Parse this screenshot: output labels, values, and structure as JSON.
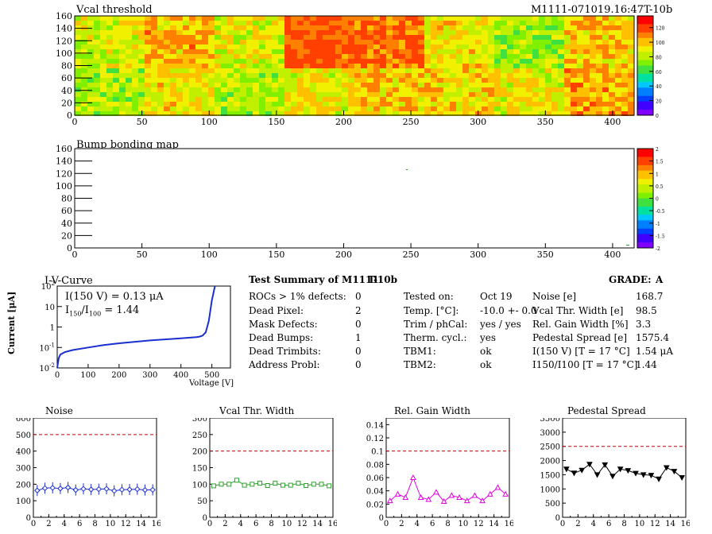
{
  "header": {
    "vcal_title": "Vcal threshold",
    "module_id": "M1111-071019.16:47T-10b",
    "bump_title": "Bump bonding map"
  },
  "maps": {
    "x_ticks": [
      "0",
      "50",
      "100",
      "150",
      "200",
      "250",
      "300",
      "350",
      "400"
    ],
    "y_ticks": [
      "0",
      "20",
      "40",
      "60",
      "80",
      "100",
      "120",
      "140",
      "160"
    ],
    "vcal_colorbar_ticks": [
      "0",
      "20",
      "40",
      "60",
      "80",
      "100",
      "120"
    ],
    "bump_colorbar_ticks": [
      "-2",
      "-1.5",
      "-1",
      "-0.5",
      "0",
      "0.5",
      "1",
      "1.5",
      "2"
    ]
  },
  "iv": {
    "title": "I-V-Curve",
    "i150_label": "I(150 V) = 0.13 μA",
    "ratio_label_main": "I",
    "ratio_sub1": "150",
    "ratio_slash": "/I",
    "ratio_sub2": "100",
    "ratio_value": "=  1.44",
    "ylabel": "Current [μA]",
    "xlabel": "Voltage [V]",
    "x_ticks": [
      "0",
      "100",
      "200",
      "300",
      "400",
      "500"
    ]
  },
  "summary": {
    "title": "Test Summary of M1111",
    "test": "T-10b",
    "grade_label": "GRADE:",
    "grade": "A",
    "left": [
      {
        "label": "ROCs > 1% defects:",
        "value": "0"
      },
      {
        "label": "Dead Pixel:",
        "value": "2"
      },
      {
        "label": "Mask Defects:",
        "value": "0"
      },
      {
        "label": "Dead Bumps:",
        "value": "1"
      },
      {
        "label": "Dead Trimbits:",
        "value": "0"
      },
      {
        "label": "Address Probl:",
        "value": "0"
      }
    ],
    "middle": [
      {
        "label": "Tested on:",
        "value": "Oct 19"
      },
      {
        "label": "Temp. [°C]:",
        "value": "-10.0 +- 0.0"
      },
      {
        "label": "Trim / phCal:",
        "value": "yes / yes"
      },
      {
        "label": "Therm. cycl.:",
        "value": "yes"
      },
      {
        "label": "TBM1:",
        "value": "ok"
      },
      {
        "label": "TBM2:",
        "value": "ok"
      }
    ],
    "right": [
      {
        "label": "Noise [e]",
        "value": "168.7"
      },
      {
        "label": "Vcal Thr. Width [e]",
        "value": "98.5"
      },
      {
        "label": "Rel. Gain Width [%]",
        "value": "3.3"
      },
      {
        "label": "Pedestal Spread [e]",
        "value": "1575.4"
      },
      {
        "label": "I(150 V) [T = 17 °C]",
        "value": "1.54 μA"
      },
      {
        "label": "I150/I100 [T = 17 °C]",
        "value": "1.44"
      }
    ]
  },
  "chart_data": [
    {
      "type": "line",
      "title": "I-V-Curve",
      "xlabel": "Voltage [V]",
      "ylabel": "Current [μA]",
      "log_y": true,
      "xlim": [
        0,
        560
      ],
      "ylim": [
        0.01,
        100
      ],
      "x": [
        0,
        5,
        10,
        25,
        50,
        100,
        150,
        200,
        300,
        400,
        450,
        460,
        470,
        480,
        490,
        500,
        510
      ],
      "y": [
        0.01,
        0.03,
        0.045,
        0.06,
        0.075,
        0.1,
        0.13,
        0.16,
        0.22,
        0.28,
        0.32,
        0.34,
        0.38,
        0.55,
        2,
        20,
        100
      ]
    },
    {
      "type": "line",
      "title": "Noise",
      "x": [
        0,
        1,
        2,
        3,
        4,
        5,
        6,
        7,
        8,
        9,
        10,
        11,
        12,
        13,
        14,
        15
      ],
      "ylim": [
        0,
        600
      ],
      "y_ticks": [
        "0",
        "100",
        "200",
        "300",
        "400",
        "500",
        "600"
      ],
      "x_ticks": [
        "0",
        "2",
        "4",
        "6",
        "8",
        "10",
        "12",
        "14",
        "16"
      ],
      "limit": 500,
      "color": "#1a2fd0",
      "marker": "diamond",
      "values": [
        162,
        176,
        178,
        174,
        180,
        165,
        172,
        168,
        170,
        172,
        160,
        167,
        168,
        170,
        165,
        166
      ]
    },
    {
      "type": "line",
      "title": "Vcal Thr. Width",
      "x": [
        0,
        1,
        2,
        3,
        4,
        5,
        6,
        7,
        8,
        9,
        10,
        11,
        12,
        13,
        14,
        15
      ],
      "ylim": [
        0,
        300
      ],
      "y_ticks": [
        "0",
        "50",
        "100",
        "150",
        "200",
        "250",
        "300"
      ],
      "x_ticks": [
        "0",
        "2",
        "4",
        "6",
        "8",
        "10",
        "12",
        "14",
        "16"
      ],
      "limit": 200,
      "color": "#2ca02c",
      "marker": "square",
      "values": [
        95,
        100,
        100,
        112,
        97,
        100,
        103,
        96,
        103,
        97,
        97,
        103,
        96,
        100,
        100,
        95
      ]
    },
    {
      "type": "line",
      "title": "Rel. Gain Width",
      "x": [
        0,
        1,
        2,
        3,
        4,
        5,
        6,
        7,
        8,
        9,
        10,
        11,
        12,
        13,
        14,
        15
      ],
      "ylim": [
        0,
        0.15
      ],
      "y_ticks": [
        "0",
        "0.02",
        "0.04",
        "0.06",
        "0.08",
        "0.1",
        "0.12",
        "0.14"
      ],
      "x_ticks": [
        "0",
        "2",
        "4",
        "6",
        "8",
        "10",
        "12",
        "14",
        "16"
      ],
      "limit": 0.1,
      "color": "#e000e0",
      "marker": "triangle",
      "values": [
        0.025,
        0.035,
        0.03,
        0.06,
        0.03,
        0.027,
        0.038,
        0.024,
        0.033,
        0.03,
        0.025,
        0.033,
        0.025,
        0.035,
        0.045,
        0.035
      ]
    },
    {
      "type": "line",
      "title": "Pedestal Spread",
      "x": [
        0,
        1,
        2,
        3,
        4,
        5,
        6,
        7,
        8,
        9,
        10,
        11,
        12,
        13,
        14,
        15
      ],
      "ylim": [
        0,
        3500
      ],
      "y_ticks": [
        "0",
        "500",
        "1000",
        "1500",
        "2000",
        "2500",
        "3000",
        "3500"
      ],
      "x_ticks": [
        "0",
        "2",
        "4",
        "6",
        "8",
        "10",
        "12",
        "14",
        "16"
      ],
      "limit": 2500,
      "color": "#000000",
      "marker": "triangle-down",
      "values": [
        1700,
        1560,
        1660,
        1870,
        1500,
        1850,
        1450,
        1700,
        1650,
        1550,
        1500,
        1480,
        1350,
        1750,
        1620,
        1400
      ]
    }
  ]
}
